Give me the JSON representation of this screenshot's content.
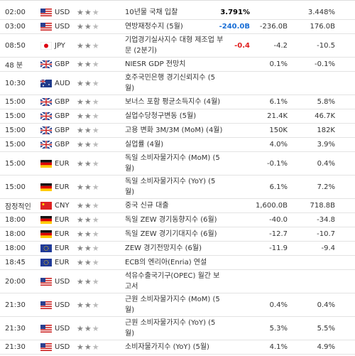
{
  "table": {
    "rows": [
      {
        "time": "02:00",
        "currency": "USD",
        "event": "10년물 국채 입찰",
        "actual": "3.791%",
        "actual_color": "#000000",
        "previous": "3.448%"
      },
      {
        "time": "03:00",
        "currency": "USD",
        "event": "연방재정수지 (5월)",
        "actual": "-240.0B",
        "actual_color": "#1a6fd6",
        "forecast": "-236.0B",
        "previous": "176.0B"
      },
      {
        "time": "08:50",
        "currency": "JPY",
        "event": "기업경기실사지수 대형 제조업 부문 (2분기)",
        "actual": "-0.4",
        "actual_color": "#e02020",
        "forecast": "-4.2",
        "previous": "-10.5"
      },
      {
        "time": "48 분",
        "currency": "GBP",
        "event": "NIESR GDP 전망치",
        "forecast": "0.1%",
        "previous": "-0.1%"
      },
      {
        "time": "10:30",
        "currency": "AUD",
        "event": "호주국민은행 경기신뢰지수 (5월)"
      },
      {
        "time": "15:00",
        "currency": "GBP",
        "event": "보너스 포함 평균소득지수 (4월)",
        "forecast": "6.1%",
        "previous": "5.8%"
      },
      {
        "time": "15:00",
        "currency": "GBP",
        "event": "실업수당청구변동 (5월)",
        "forecast": "21.4K",
        "previous": "46.7K"
      },
      {
        "time": "15:00",
        "currency": "GBP",
        "event": "고용 변화 3M/3M (MoM) (4월)",
        "forecast": "150K",
        "previous": "182K"
      },
      {
        "time": "15:00",
        "currency": "GBP",
        "event": "실업률 (4월)",
        "forecast": "4.0%",
        "previous": "3.9%"
      },
      {
        "time": "15:00",
        "currency": "EUR",
        "event": "독일 소비자물가지수 (MoM) (5월)",
        "forecast": "-0.1%",
        "previous": "0.4%"
      },
      {
        "time": "15:00",
        "currency": "EUR",
        "event": "독일 소비자물가지수 (YoY) (5월)",
        "forecast": "6.1%",
        "previous": "7.2%"
      },
      {
        "time": "잠정적인",
        "currency": "CNY",
        "event": "중국 신규 대출",
        "forecast": "1,600.0B",
        "previous": "718.8B"
      },
      {
        "time": "18:00",
        "currency": "EUR",
        "event": "독일 ZEW 경기동향지수 (6월)",
        "forecast": "-40.0",
        "previous": "-34.8"
      },
      {
        "time": "18:00",
        "currency": "EUR",
        "event": "독일 ZEW 경기기대지수 (6월)",
        "forecast": "-12.7",
        "previous": "-10.7"
      },
      {
        "time": "18:00",
        "currency": "EUR",
        "event": "ZEW 경기전망지수 (6월)",
        "forecast": "-11.9",
        "previous": "-9.4"
      },
      {
        "time": "18:45",
        "currency": "EUR",
        "event": "ECB의 엔리아(Enria) 연설"
      },
      {
        "time": "20:00",
        "currency": "USD",
        "event": "석유수출국기구(OPEC) 월간 보고서"
      },
      {
        "time": "21:30",
        "currency": "USD",
        "event": "근원 소비자물가지수 (MoM) (5월)",
        "forecast": "0.4%",
        "previous": "0.4%"
      },
      {
        "time": "21:30",
        "currency": "USD",
        "event": "근원 소비자물가지수 (YoY) (5월)",
        "forecast": "5.3%",
        "previous": "5.5%"
      },
      {
        "time": "21:30",
        "currency": "USD",
        "event": "소비자물가지수 (YoY) (5월)",
        "forecast": "4.1%",
        "previous": "4.9%"
      }
    ]
  }
}
